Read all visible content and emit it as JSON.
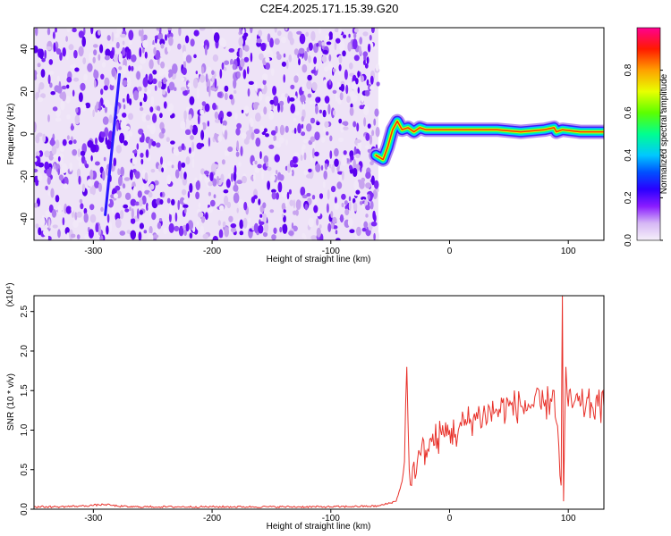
{
  "title": "C2E4.2025.171.15.39.G20",
  "chart_data": [
    {
      "type": "heatmap",
      "xlabel": "Height of straight line (km)",
      "ylabel": "Frequency (Hz)",
      "xlim": [
        -350,
        130
      ],
      "ylim": [
        -50,
        50
      ],
      "xticks": [
        -300,
        -200,
        -100,
        0,
        100
      ],
      "yticks": [
        -40,
        -20,
        0,
        20,
        40
      ],
      "noise_region_x": [
        -350,
        -60
      ],
      "signal_trace": {
        "description_free": true,
        "points": [
          [
            -62,
            -10
          ],
          [
            -56,
            -12
          ],
          [
            -52,
            -6
          ],
          [
            -48,
            2
          ],
          [
            -44,
            6
          ],
          [
            -40,
            2
          ],
          [
            -35,
            3
          ],
          [
            -30,
            1
          ],
          [
            -25,
            3
          ],
          [
            -20,
            2
          ],
          [
            -10,
            2
          ],
          [
            0,
            2
          ],
          [
            20,
            2
          ],
          [
            40,
            2
          ],
          [
            60,
            1
          ],
          [
            80,
            2
          ],
          [
            88,
            3
          ],
          [
            90,
            1
          ],
          [
            95,
            2
          ],
          [
            110,
            1
          ],
          [
            130,
            1
          ]
        ]
      },
      "streak_x": [
        -290,
        -278
      ],
      "streak_y": [
        -38,
        28
      ],
      "colorbar": {
        "label": "Normalized spectral amplitude",
        "ticks": [
          "0.0",
          "0.2",
          "0.4",
          "0.6",
          "0.8"
        ],
        "range": [
          0,
          1
        ],
        "colors": [
          "#f4eef9",
          "#c79cf4",
          "#7b00ff",
          "#0000ff",
          "#00c8ff",
          "#00ff6a",
          "#d4ff00",
          "#ffb000",
          "#ff2000",
          "#ff0088"
        ]
      }
    },
    {
      "type": "line",
      "xlabel": "Height of straight line (km)",
      "ylabel": "SNR (10 * v/v)",
      "scale_label": "(x10⁴)",
      "xlim": [
        -350,
        130
      ],
      "ylim": [
        0,
        2.7
      ],
      "xticks": [
        -300,
        -200,
        -100,
        0,
        100
      ],
      "yticks": [
        "0.0",
        "0.5",
        "1.0",
        "1.5",
        "2.0",
        "2.5"
      ],
      "series": [
        {
          "color": "#e8312a",
          "x": [
            -350,
            -330,
            -310,
            -290,
            -280,
            -270,
            -250,
            -200,
            -150,
            -100,
            -60,
            -45,
            -40,
            -38,
            -36,
            -34,
            -32,
            -30,
            -28,
            -25,
            -20,
            -15,
            -10,
            -5,
            0,
            5,
            10,
            15,
            20,
            30,
            40,
            50,
            60,
            70,
            80,
            85,
            88,
            90,
            92,
            94,
            95,
            96,
            98,
            100,
            105,
            110,
            115,
            120,
            125,
            130
          ],
          "values": [
            0.03,
            0.03,
            0.04,
            0.06,
            0.04,
            0.03,
            0.03,
            0.03,
            0.03,
            0.03,
            0.04,
            0.1,
            0.35,
            0.6,
            1.8,
            0.5,
            0.3,
            0.6,
            0.45,
            0.7,
            0.75,
            0.85,
            0.9,
            0.95,
            1.0,
            0.95,
            1.05,
            1.1,
            1.15,
            1.2,
            1.25,
            1.3,
            1.3,
            1.32,
            1.3,
            1.4,
            1.5,
            1.1,
            0.8,
            0.3,
            2.7,
            0.1,
            1.8,
            1.3,
            1.35,
            1.3,
            1.32,
            1.3,
            1.3,
            1.3
          ]
        }
      ]
    }
  ]
}
